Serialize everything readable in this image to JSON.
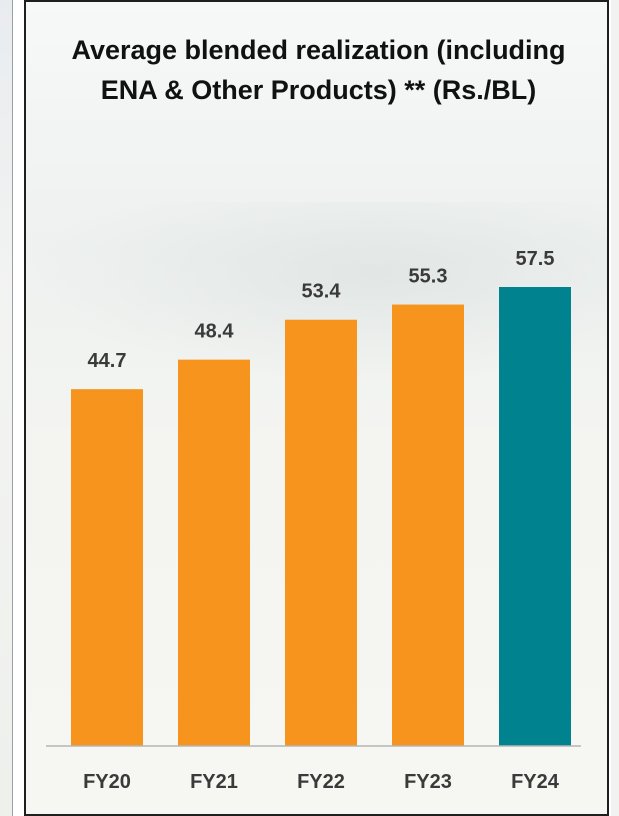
{
  "chart_data": {
    "type": "bar",
    "title": "Average blended realization (including ENA & Other Products) ** (Rs./BL)",
    "categories": [
      "FY20",
      "FY21",
      "FY22",
      "FY23",
      "FY24"
    ],
    "values": [
      44.7,
      48.4,
      53.4,
      55.3,
      57.5
    ],
    "value_labels": [
      "44.7",
      "48.4",
      "53.4",
      "55.3",
      "57.5"
    ],
    "bar_colors": [
      "#F7941D",
      "#F7941D",
      "#F7941D",
      "#F7941D",
      "#00838F"
    ],
    "ylim": [
      0,
      57.5
    ],
    "grid": false,
    "legend": "none"
  },
  "colors": {
    "highlight": "#00838F",
    "default_bar": "#F7941D",
    "axis": "#b5b5b5",
    "text": "#3a3a3a"
  }
}
